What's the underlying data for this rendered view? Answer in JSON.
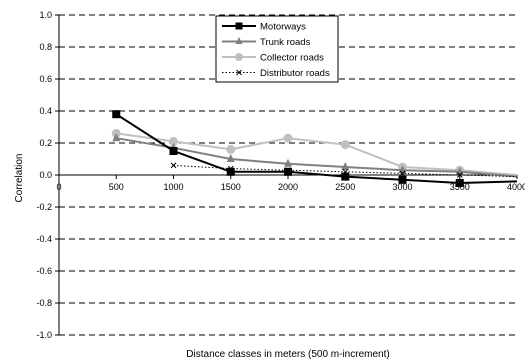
{
  "chart_data": {
    "type": "line",
    "xlabel": "Distance classes in meters (500 m-increment)",
    "ylabel": "Correlation",
    "xlim": [
      0,
      4000
    ],
    "ylim": [
      -1.0,
      1.0
    ],
    "x_ticks": [
      "0",
      "500",
      "1000",
      "1500",
      "2000",
      "2500",
      "3000",
      "3500",
      "4000"
    ],
    "y_ticks": [
      "1.0",
      "0.8",
      "0.6",
      "0.4",
      "0.2",
      "0.0",
      "-0.2",
      "-0.4",
      "-0.6",
      "-0.8",
      "-1.0"
    ],
    "grid": "horizontal dashed",
    "legend_position": "top-center",
    "series": [
      {
        "name": "Motorways",
        "color": "#000000",
        "marker": "square",
        "line": "solid",
        "x": [
          500,
          1000,
          1500,
          2000,
          2500,
          3000,
          3500,
          4000
        ],
        "y": [
          0.38,
          0.15,
          0.02,
          0.02,
          -0.01,
          -0.03,
          -0.05,
          -0.04
        ]
      },
      {
        "name": "Trunk roads",
        "color": "#808080",
        "marker": "triangle",
        "line": "solid",
        "x": [
          500,
          1000,
          1500,
          2000,
          2500,
          3000,
          3500,
          4000
        ],
        "y": [
          0.23,
          0.17,
          0.1,
          0.07,
          0.05,
          0.03,
          0.02,
          -0.01
        ]
      },
      {
        "name": "Collector roads",
        "color": "#c0c0c0",
        "marker": "circle",
        "line": "solid",
        "x": [
          500,
          1000,
          1500,
          2000,
          2500,
          3000,
          3500,
          4000
        ],
        "y": [
          0.26,
          0.21,
          0.16,
          0.23,
          0.19,
          0.05,
          0.03,
          0.0
        ]
      },
      {
        "name": "Distributor roads",
        "color": "#000000",
        "marker": "x",
        "line": "dotted",
        "x": [
          1000,
          1500,
          2000,
          2500,
          3000,
          3500,
          4000
        ],
        "y": [
          0.06,
          0.04,
          0.03,
          0.02,
          0.01,
          0.0,
          -0.01
        ]
      }
    ]
  }
}
